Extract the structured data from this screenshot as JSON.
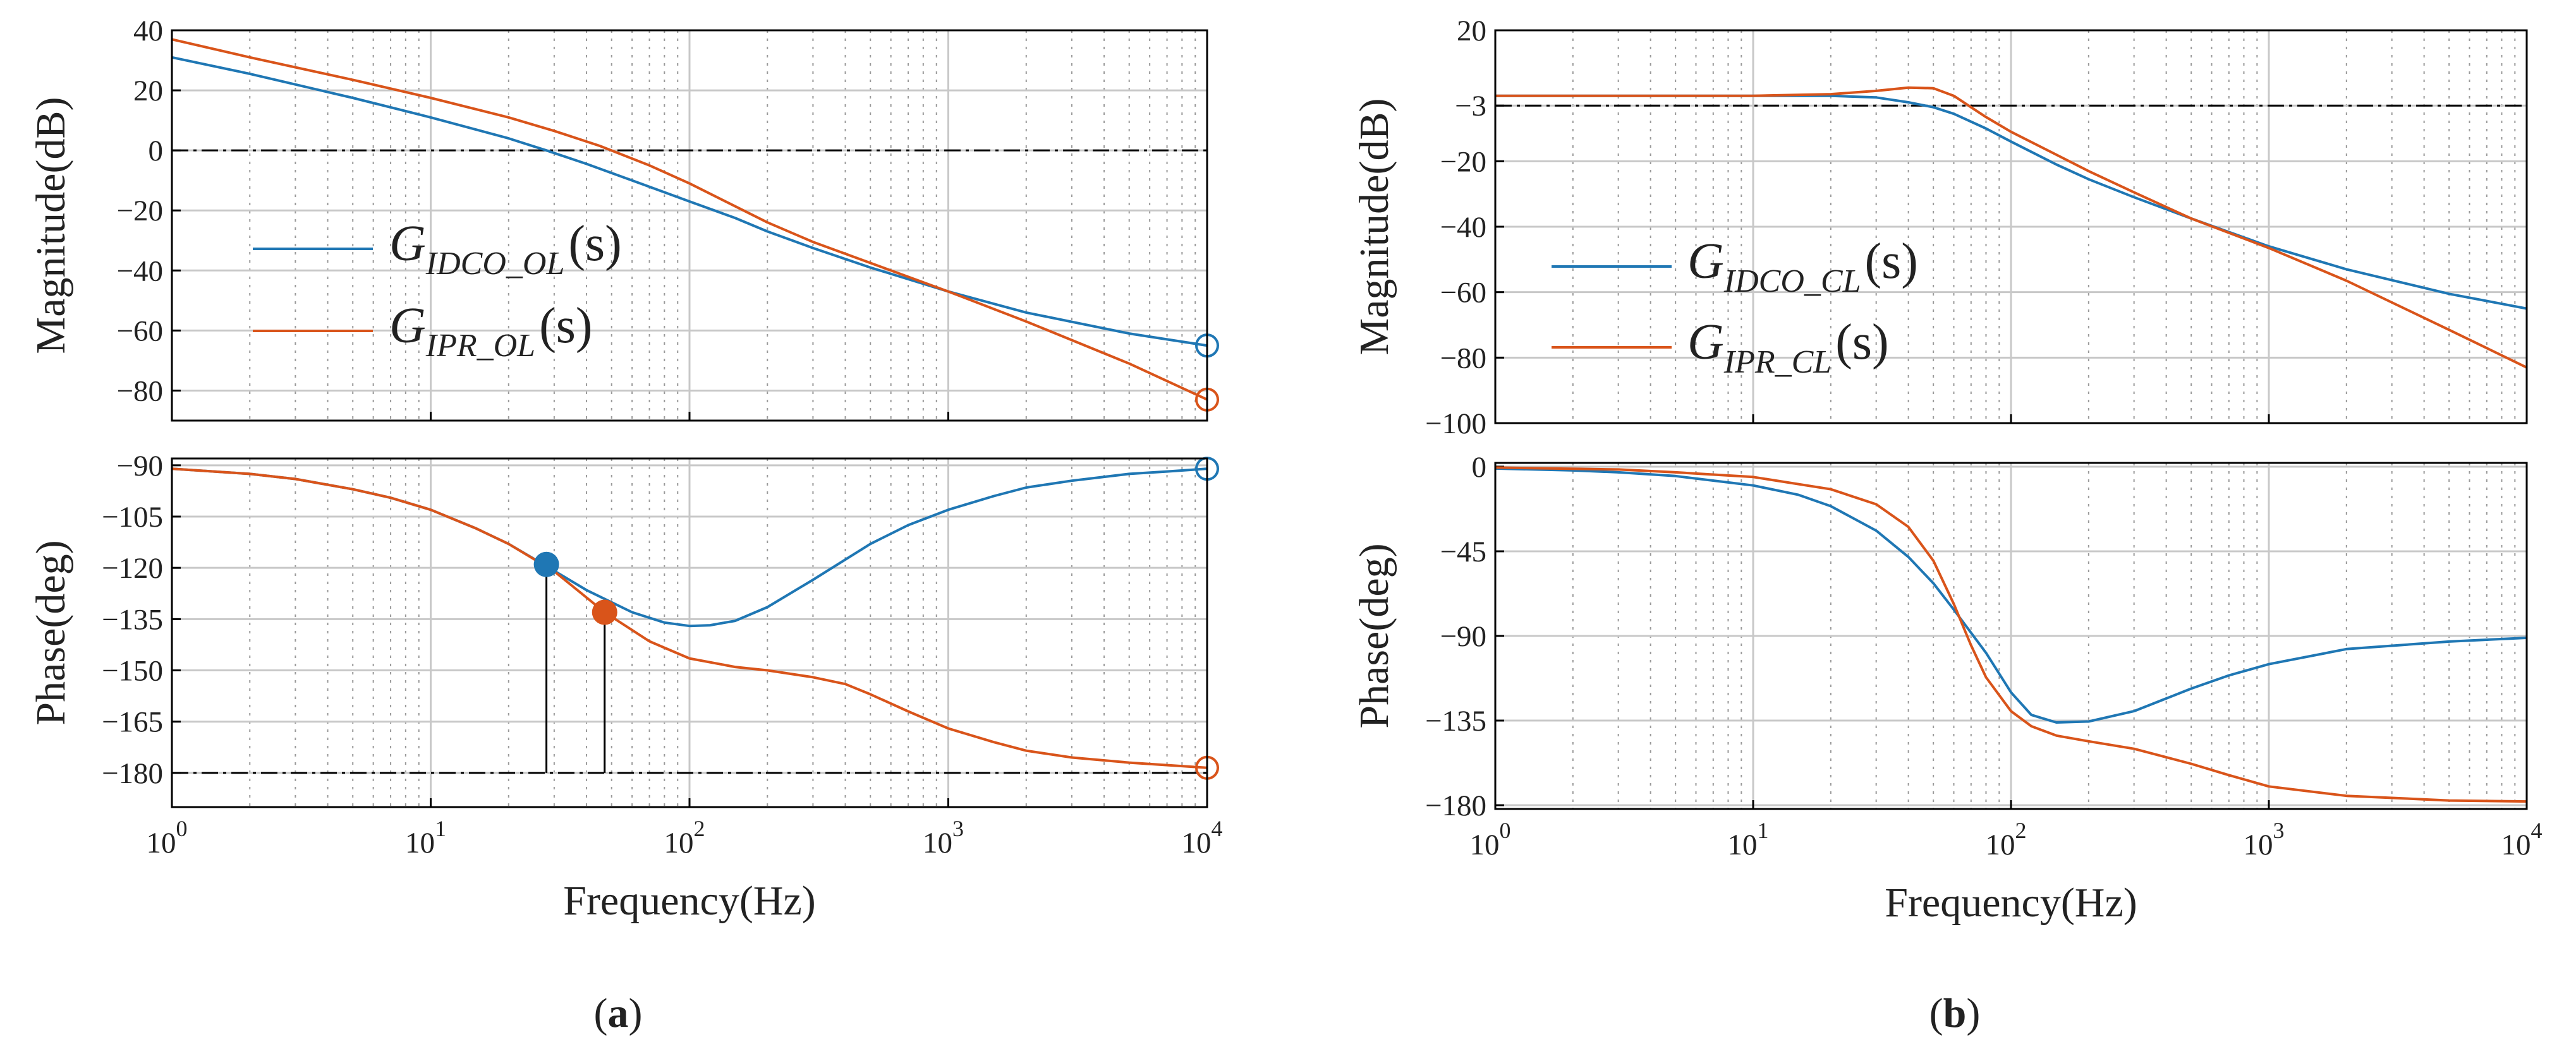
{
  "captions": [
    "(a)",
    "(b)"
  ],
  "caption_parts": [
    {
      "open": "(",
      "letter": "a",
      "close": ")"
    },
    {
      "open": "(",
      "letter": "b",
      "close": ")"
    }
  ],
  "colors": {
    "blue": "#1f77b4",
    "orange": "#d9541a",
    "grid": "#c8c8c8",
    "axis": "#000000"
  },
  "chart_data": [
    {
      "id": "a-magnitude",
      "type": "line",
      "x_scale": "log",
      "xlim": [
        1,
        10000
      ],
      "ylabel": "Magnitude(dB)",
      "ylim": [
        -90,
        40
      ],
      "yticks": [
        40,
        20,
        0,
        -20,
        -40,
        -60,
        -80
      ],
      "reference_line": {
        "y": 0,
        "style": "dash-dot"
      },
      "legend": [
        {
          "base": "G",
          "sub": "IDCO_OL",
          "arg": "(s)",
          "color": "blue"
        },
        {
          "base": "G",
          "sub": "IPR_OL",
          "arg": "(s)",
          "color": "orange"
        }
      ],
      "series": [
        {
          "color": "blue",
          "x": [
            1,
            2,
            5,
            10,
            20,
            28,
            40,
            60,
            100,
            150,
            200,
            300,
            500,
            1000,
            2000,
            5000,
            10000
          ],
          "y": [
            31,
            25.5,
            17.5,
            11,
            4,
            0,
            -4.5,
            -10,
            -17,
            -22.5,
            -27,
            -32.5,
            -39,
            -47,
            -54,
            -61,
            -65
          ]
        },
        {
          "color": "orange",
          "x": [
            1,
            2,
            5,
            10,
            20,
            30,
            45,
            70,
            100,
            200,
            300,
            500,
            1000,
            2000,
            5000,
            10000
          ],
          "y": [
            37,
            31,
            23.5,
            17.5,
            11,
            6.5,
            1.5,
            -5,
            -11,
            -24,
            -30.5,
            -37.5,
            -47,
            -57,
            -71,
            -83
          ]
        }
      ],
      "markers": [
        {
          "x": 10000,
          "y": -65,
          "color": "blue",
          "style": "open-circle"
        },
        {
          "x": 10000,
          "y": -83,
          "color": "orange",
          "style": "open-circle"
        }
      ]
    },
    {
      "id": "a-phase",
      "type": "line",
      "x_scale": "log",
      "xlim": [
        1,
        10000
      ],
      "xlabel": "Frequency(Hz)",
      "xticks": [
        "10^0",
        "10^1",
        "10^2",
        "10^3",
        "10^4"
      ],
      "ylabel": "Phase(deg)",
      "ylim": [
        -190,
        -88
      ],
      "yticks": [
        -90,
        -105,
        -120,
        -135,
        -150,
        -165,
        -180
      ],
      "reference_line": {
        "y": -180,
        "style": "dash-dot"
      },
      "series": [
        {
          "color": "blue",
          "x": [
            1,
            2,
            3,
            5,
            7,
            10,
            15,
            20,
            28,
            40,
            60,
            80,
            100,
            120,
            150,
            200,
            300,
            500,
            700,
            1000,
            1500,
            2000,
            3000,
            5000,
            7000,
            10000
          ],
          "y": [
            -91,
            -92.5,
            -94,
            -97,
            -99.5,
            -103,
            -108.5,
            -113,
            -119.5,
            -126.5,
            -133,
            -136,
            -137,
            -136.8,
            -135.5,
            -131.5,
            -123.5,
            -113,
            -107.5,
            -103,
            -99,
            -96.5,
            -94.5,
            -92.5,
            -91.8,
            -91
          ]
        },
        {
          "color": "orange",
          "x": [
            1,
            2,
            3,
            5,
            7,
            10,
            15,
            20,
            30,
            47,
            70,
            100,
            150,
            200,
            300,
            400,
            500,
            700,
            1000,
            1500,
            2000,
            3000,
            5000,
            10000
          ],
          "y": [
            -91,
            -92.5,
            -94,
            -97,
            -99.5,
            -103,
            -108.5,
            -113,
            -121,
            -133,
            -141.5,
            -146.5,
            -149,
            -150,
            -152,
            -154,
            -157,
            -162,
            -167,
            -171,
            -173.5,
            -175.5,
            -177,
            -178.5
          ]
        }
      ],
      "markers": [
        {
          "x": 28,
          "y": -119,
          "color": "blue",
          "style": "filled-circle",
          "drop_line": true
        },
        {
          "x": 47,
          "y": -133,
          "color": "orange",
          "style": "filled-circle",
          "drop_line": true
        },
        {
          "x": 10000,
          "y": -91,
          "color": "blue",
          "style": "open-circle"
        },
        {
          "x": 10000,
          "y": -178.5,
          "color": "orange",
          "style": "open-circle"
        }
      ]
    },
    {
      "id": "b-magnitude",
      "type": "line",
      "x_scale": "log",
      "xlim": [
        1,
        10000
      ],
      "ylabel": "Magnitude(dB)",
      "ylim": [
        -100,
        20
      ],
      "yticks": [
        20,
        -3,
        -20,
        -40,
        -60,
        -80,
        -100
      ],
      "reference_line": {
        "y": -3,
        "style": "dash-dot"
      },
      "legend": [
        {
          "base": "G",
          "sub": "IDCO_CL",
          "arg": "(s)",
          "color": "blue"
        },
        {
          "base": "G",
          "sub": "IPR_CL",
          "arg": "(s)",
          "color": "orange"
        }
      ],
      "series": [
        {
          "color": "blue",
          "x": [
            1,
            5,
            10,
            20,
            30,
            40,
            50,
            60,
            80,
            100,
            150,
            200,
            300,
            500,
            1000,
            2000,
            5000,
            10000
          ],
          "y": [
            0,
            0,
            0,
            0,
            -0.5,
            -2,
            -3.5,
            -5.5,
            -10,
            -14,
            -21,
            -25.5,
            -31,
            -37.5,
            -46,
            -53,
            -60.5,
            -65
          ]
        },
        {
          "color": "orange",
          "x": [
            1,
            5,
            10,
            20,
            30,
            40,
            50,
            60,
            70,
            80,
            100,
            150,
            200,
            300,
            500,
            1000,
            2000,
            5000,
            10000
          ],
          "y": [
            0,
            0,
            0,
            0.5,
            1.5,
            2.5,
            2.3,
            0,
            -3.5,
            -6.5,
            -11,
            -18,
            -23,
            -29.5,
            -37.5,
            -46.5,
            -56.5,
            -71.5,
            -83
          ]
        }
      ]
    },
    {
      "id": "b-phase",
      "type": "line",
      "x_scale": "log",
      "xlim": [
        1,
        10000
      ],
      "xlabel": "Frequency(Hz)",
      "xticks": [
        "10^0",
        "10^1",
        "10^2",
        "10^3",
        "10^4"
      ],
      "ylabel": "Phase(deg)",
      "ylim": [
        -182,
        2
      ],
      "yticks": [
        0,
        -45,
        -90,
        -135,
        -180
      ],
      "series": [
        {
          "color": "blue",
          "x": [
            1,
            2,
            3,
            5,
            10,
            15,
            20,
            30,
            40,
            50,
            60,
            80,
            100,
            120,
            150,
            200,
            300,
            500,
            700,
            1000,
            2000,
            5000,
            10000
          ],
          "y": [
            -1,
            -2,
            -3,
            -5,
            -10,
            -15,
            -21,
            -34,
            -48,
            -62,
            -76,
            -99,
            -120,
            -132,
            -136,
            -135.5,
            -130,
            -118,
            -111,
            -105,
            -97,
            -93,
            -91
          ]
        },
        {
          "color": "orange",
          "x": [
            1,
            3,
            5,
            10,
            20,
            30,
            40,
            50,
            60,
            70,
            80,
            100,
            120,
            150,
            200,
            300,
            500,
            700,
            1000,
            2000,
            5000,
            10000
          ],
          "y": [
            -0.5,
            -1.5,
            -3,
            -5.5,
            -12,
            -20,
            -32,
            -50,
            -73,
            -95,
            -112,
            -130,
            -138,
            -143,
            -146,
            -150,
            -158,
            -164,
            -170,
            -175,
            -177.5,
            -178
          ]
        }
      ]
    }
  ]
}
